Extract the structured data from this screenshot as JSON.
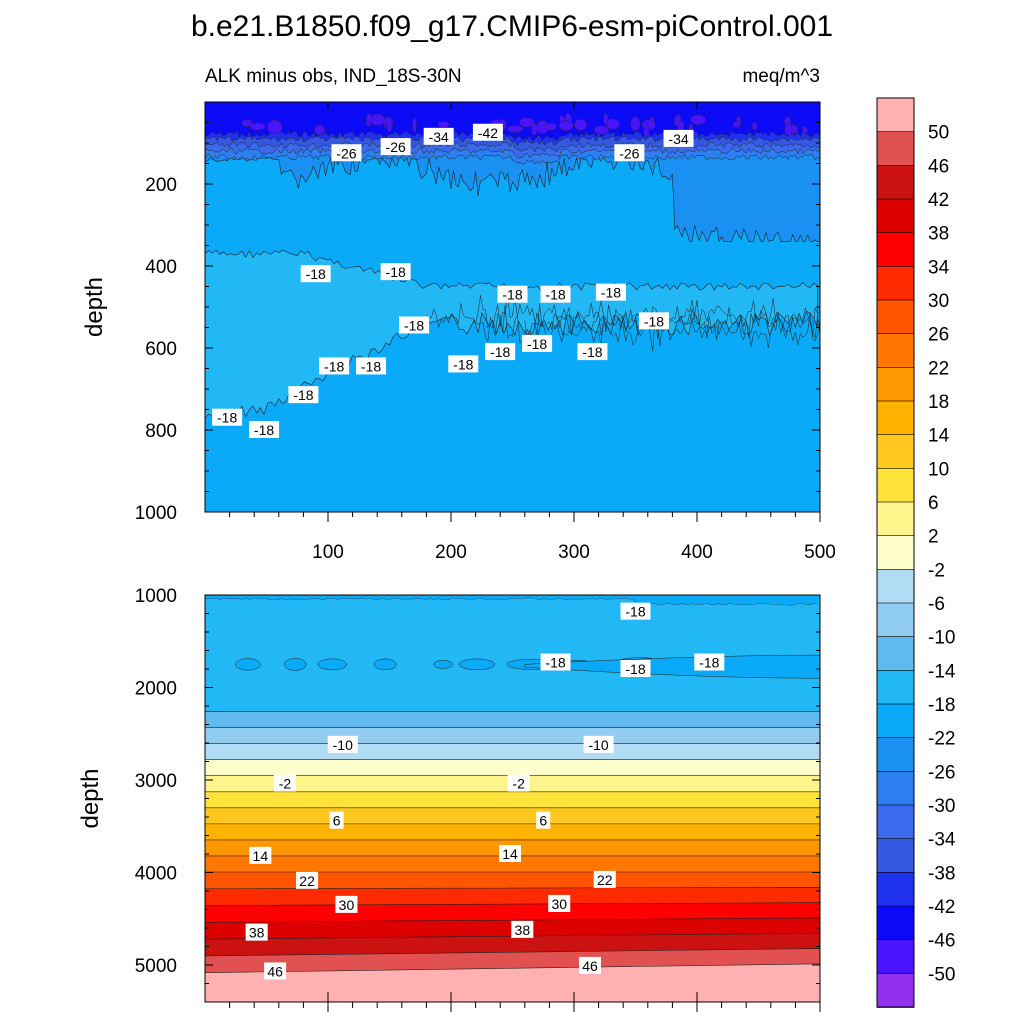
{
  "chart_data": {
    "type": "heatmap",
    "title": "b.e21.B1850.f09_g17.CMIP6-esm-piControl.001",
    "subtitle_left": "ALK minus obs, IND_18S-30N",
    "subtitle_right": "meq/m^3",
    "panels": [
      {
        "name": "upper",
        "ylabel": "depth",
        "ylim": [
          0,
          1000
        ],
        "xlim": [
          0,
          500
        ],
        "x_tick_labels": [
          "100",
          "200",
          "300",
          "400",
          "500"
        ],
        "y_tick_labels": [
          "200",
          "400",
          "600",
          "800",
          "1000"
        ],
        "contour_labels": [
          {
            "text": "-26",
            "x": 115,
            "y": 125
          },
          {
            "text": "-26",
            "x": 155,
            "y": 110
          },
          {
            "text": "-34",
            "x": 190,
            "y": 85
          },
          {
            "text": "-42",
            "x": 230,
            "y": 75
          },
          {
            "text": "-26",
            "x": 345,
            "y": 125
          },
          {
            "text": "-34",
            "x": 385,
            "y": 90
          },
          {
            "text": "-18",
            "x": 90,
            "y": 420
          },
          {
            "text": "-18",
            "x": 155,
            "y": 415
          },
          {
            "text": "-18",
            "x": 250,
            "y": 470
          },
          {
            "text": "-18",
            "x": 285,
            "y": 470
          },
          {
            "text": "-18",
            "x": 330,
            "y": 465
          },
          {
            "text": "-18",
            "x": 365,
            "y": 535
          },
          {
            "text": "-18",
            "x": 170,
            "y": 545
          },
          {
            "text": "-18",
            "x": 105,
            "y": 645
          },
          {
            "text": "-18",
            "x": 135,
            "y": 645
          },
          {
            "text": "-18",
            "x": 210,
            "y": 640
          },
          {
            "text": "-18",
            "x": 240,
            "y": 610
          },
          {
            "text": "-18",
            "x": 270,
            "y": 590
          },
          {
            "text": "-18",
            "x": 315,
            "y": 610
          },
          {
            "text": "-18",
            "x": 80,
            "y": 715
          },
          {
            "text": "-18",
            "x": 18,
            "y": 770
          },
          {
            "text": "-18",
            "x": 48,
            "y": 800
          }
        ]
      },
      {
        "name": "lower",
        "ylabel": "depth",
        "ylim": [
          1000,
          5400
        ],
        "xlim": [
          0,
          500
        ],
        "y_tick_labels": [
          "1000",
          "2000",
          "3000",
          "4000",
          "5000"
        ],
        "contour_labels": [
          {
            "text": "-18",
            "x": 350,
            "y": 1180
          },
          {
            "text": "-18",
            "x": 285,
            "y": 1730
          },
          {
            "text": "-18",
            "x": 350,
            "y": 1800
          },
          {
            "text": "-18",
            "x": 410,
            "y": 1730
          },
          {
            "text": "-10",
            "x": 112,
            "y": 2620
          },
          {
            "text": "-10",
            "x": 320,
            "y": 2620
          },
          {
            "text": "-2",
            "x": 65,
            "y": 3040
          },
          {
            "text": "-2",
            "x": 255,
            "y": 3040
          },
          {
            "text": "6",
            "x": 107,
            "y": 3440
          },
          {
            "text": "6",
            "x": 275,
            "y": 3440
          },
          {
            "text": "14",
            "x": 45,
            "y": 3820
          },
          {
            "text": "14",
            "x": 248,
            "y": 3800
          },
          {
            "text": "22",
            "x": 83,
            "y": 4090
          },
          {
            "text": "22",
            "x": 325,
            "y": 4080
          },
          {
            "text": "30",
            "x": 115,
            "y": 4350
          },
          {
            "text": "30",
            "x": 288,
            "y": 4340
          },
          {
            "text": "38",
            "x": 42,
            "y": 4650
          },
          {
            "text": "38",
            "x": 258,
            "y": 4620
          },
          {
            "text": "46",
            "x": 57,
            "y": 5070
          },
          {
            "text": "46",
            "x": 313,
            "y": 5010
          }
        ]
      }
    ],
    "colorbar": {
      "labels": [
        "50",
        "46",
        "42",
        "38",
        "34",
        "30",
        "26",
        "22",
        "18",
        "14",
        "10",
        "6",
        "2",
        "-2",
        "-6",
        "-10",
        "-14",
        "-18",
        "-22",
        "-26",
        "-30",
        "-34",
        "-38",
        "-42",
        "-46",
        "-50"
      ],
      "colors": [
        "#ffb1b1",
        "#e25151",
        "#cc1111",
        "#dd0000",
        "#ff0000",
        "#ff2b00",
        "#ff5500",
        "#ff7700",
        "#ff9700",
        "#ffb300",
        "#ffc81e",
        "#ffe23a",
        "#fff38c",
        "#ffffcc",
        "#b2dcf3",
        "#90cdf0",
        "#5fbaf0",
        "#22b7f5",
        "#0aaaf8",
        "#1a90f2",
        "#2d7ef0",
        "#3c6aec",
        "#3458e0",
        "#1f32f0",
        "#0b0bf7",
        "#4a14ff",
        "#9131ef"
      ],
      "levels": [
        50,
        46,
        42,
        38,
        34,
        30,
        26,
        22,
        18,
        14,
        10,
        6,
        2,
        -2,
        -6,
        -10,
        -14,
        -18,
        -22,
        -26,
        -30,
        -34,
        -38,
        -42,
        -46,
        -50
      ]
    }
  }
}
